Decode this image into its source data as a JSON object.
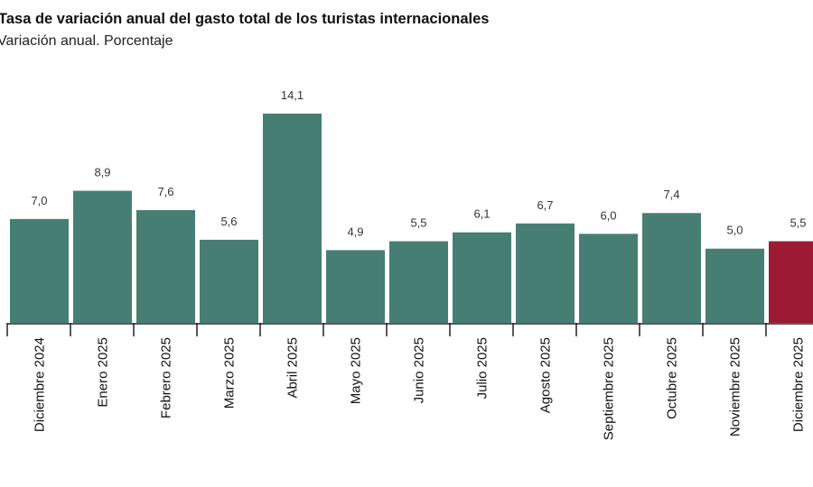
{
  "chart_data": {
    "type": "bar",
    "title": "Tasa de variación anual del gasto total de los turistas internacionales",
    "subtitle": "Variación anual. Porcentaje",
    "categories": [
      "Diciembre 2024",
      "Enero 2025",
      "Febrero 2025",
      "Marzo 2025",
      "Abril 2025",
      "Mayo 2025",
      "Junio 2025",
      "Julio 2025",
      "Agosto 2025",
      "Septiembre 2025",
      "Octubre 2025",
      "Noviembre 2025",
      "Diciembre 2025"
    ],
    "values": [
      7.0,
      8.9,
      7.6,
      5.6,
      14.1,
      4.9,
      5.5,
      6.1,
      6.7,
      6.0,
      7.4,
      5.0,
      5.5
    ],
    "data_labels": [
      "7,0",
      "8,9",
      "7,6",
      "5,6",
      "14,1",
      "4,9",
      "5,5",
      "6,1",
      "6,7",
      "6,0",
      "7,4",
      "5,0",
      "5,5"
    ],
    "ylim": [
      0,
      14.1
    ],
    "grid": false,
    "colors": {
      "default": "#467e73",
      "highlight": "#9c1a33"
    },
    "highlight_index": 12
  }
}
